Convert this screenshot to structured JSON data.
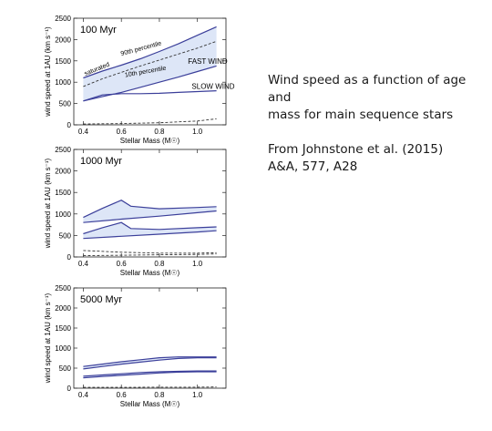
{
  "caption": {
    "line1": "Wind speed as a function of age and",
    "line2": "mass for main sequence stars",
    "ref1": "From Johnstone et al. (2015)",
    "ref2": "A&A, 577, A28"
  },
  "chart_data": [
    {
      "type": "line",
      "title": "100 Myr",
      "xlabel": "Stellar Mass (M☉)",
      "ylabel": "wind speed at 1AU (km s⁻¹)",
      "xlim": [
        0.35,
        1.15
      ],
      "ylim": [
        0,
        2500
      ],
      "xticks": [
        "0.4",
        "0.6",
        "0.8",
        "1.0"
      ],
      "yticks": [
        "0",
        "500",
        "1000",
        "1500",
        "2000",
        "2500"
      ],
      "annotations": [
        "FAST WIND",
        "SLOW WIND",
        "90th percentile",
        "10th percentile",
        "saturated"
      ],
      "series": [
        {
          "x": [
            0.4,
            0.5,
            0.6,
            0.7,
            0.8,
            0.9,
            1.0,
            1.1
          ],
          "y": [
            1100,
            1260,
            1400,
            1550,
            1720,
            1900,
            2100,
            2300
          ]
        },
        {
          "x": [
            0.4,
            0.5,
            0.6,
            0.7,
            0.8,
            0.9,
            1.0,
            1.1
          ],
          "y": [
            900,
            1080,
            1230,
            1380,
            1520,
            1660,
            1800,
            1960
          ]
        },
        {
          "x": [
            0.4,
            0.5,
            0.6,
            0.7,
            0.8,
            0.9,
            1.0,
            1.1
          ],
          "y": [
            560,
            660,
            760,
            880,
            1000,
            1120,
            1250,
            1380
          ]
        },
        {
          "x": [
            0.4,
            0.5,
            0.6,
            0.7,
            0.8,
            0.9,
            1.0,
            1.1
          ],
          "y": [
            560,
            700,
            730,
            730,
            740,
            760,
            780,
            800
          ]
        },
        {
          "x": [
            0.4,
            0.6,
            0.8,
            1.0,
            1.1
          ],
          "y": [
            20,
            30,
            50,
            90,
            140
          ]
        }
      ]
    },
    {
      "type": "line",
      "title": "1000 Myr",
      "xlabel": "Stellar Mass (M☉)",
      "ylabel": "wind speed at 1AU (km s⁻¹)",
      "xlim": [
        0.35,
        1.15
      ],
      "ylim": [
        0,
        2500
      ],
      "xticks": [
        "0.4",
        "0.6",
        "0.8",
        "1.0"
      ],
      "yticks": [
        "0",
        "500",
        "1000",
        "1500",
        "2000",
        "2500"
      ],
      "series": [
        {
          "x": [
            0.4,
            0.5,
            0.6,
            0.65,
            0.8,
            1.0,
            1.1
          ],
          "y": [
            920,
            1130,
            1320,
            1180,
            1120,
            1150,
            1170
          ]
        },
        {
          "x": [
            0.4,
            0.6,
            0.8,
            1.0,
            1.1
          ],
          "y": [
            800,
            880,
            950,
            1030,
            1070
          ]
        },
        {
          "x": [
            0.4,
            0.5,
            0.6,
            0.65,
            0.8,
            1.0,
            1.1
          ],
          "y": [
            540,
            680,
            800,
            660,
            640,
            680,
            700
          ]
        },
        {
          "x": [
            0.4,
            0.6,
            0.8,
            1.0,
            1.1
          ],
          "y": [
            430,
            480,
            530,
            580,
            610
          ]
        },
        {
          "x": [
            0.4,
            0.6,
            0.8,
            1.0,
            1.1
          ],
          "y": [
            150,
            110,
            90,
            90,
            100
          ]
        },
        {
          "x": [
            0.4,
            0.6,
            0.8,
            1.0,
            1.1
          ],
          "y": [
            30,
            40,
            50,
            60,
            70
          ]
        }
      ]
    },
    {
      "type": "line",
      "title": "5000 Myr",
      "xlabel": "Stellar Mass (M☉)",
      "ylabel": "wind speed at 1AU (km s⁻¹)",
      "xlim": [
        0.35,
        1.15
      ],
      "ylim": [
        0,
        2500
      ],
      "xticks": [
        "0.4",
        "0.6",
        "0.8",
        "1.0"
      ],
      "yticks": [
        "0",
        "500",
        "1000",
        "1500",
        "2000",
        "2500"
      ],
      "series": [
        {
          "x": [
            0.4,
            0.5,
            0.6,
            0.7,
            0.8,
            0.9,
            1.0,
            1.1
          ],
          "y": [
            540,
            600,
            660,
            710,
            760,
            780,
            780,
            780
          ]
        },
        {
          "x": [
            0.4,
            0.5,
            0.6,
            0.7,
            0.8,
            0.9,
            1.0,
            1.1
          ],
          "y": [
            480,
            540,
            600,
            650,
            700,
            740,
            760,
            760
          ]
        },
        {
          "x": [
            0.4,
            0.5,
            0.6,
            0.7,
            0.8,
            0.9,
            1.0,
            1.1
          ],
          "y": [
            300,
            330,
            360,
            390,
            410,
            420,
            430,
            430
          ]
        },
        {
          "x": [
            0.4,
            0.5,
            0.6,
            0.7,
            0.8,
            0.9,
            1.0,
            1.1
          ],
          "y": [
            260,
            290,
            320,
            350,
            380,
            400,
            410,
            410
          ]
        },
        {
          "x": [
            0.4,
            0.6,
            0.8,
            1.0,
            1.1
          ],
          "y": [
            20,
            20,
            25,
            25,
            30
          ]
        }
      ]
    }
  ]
}
